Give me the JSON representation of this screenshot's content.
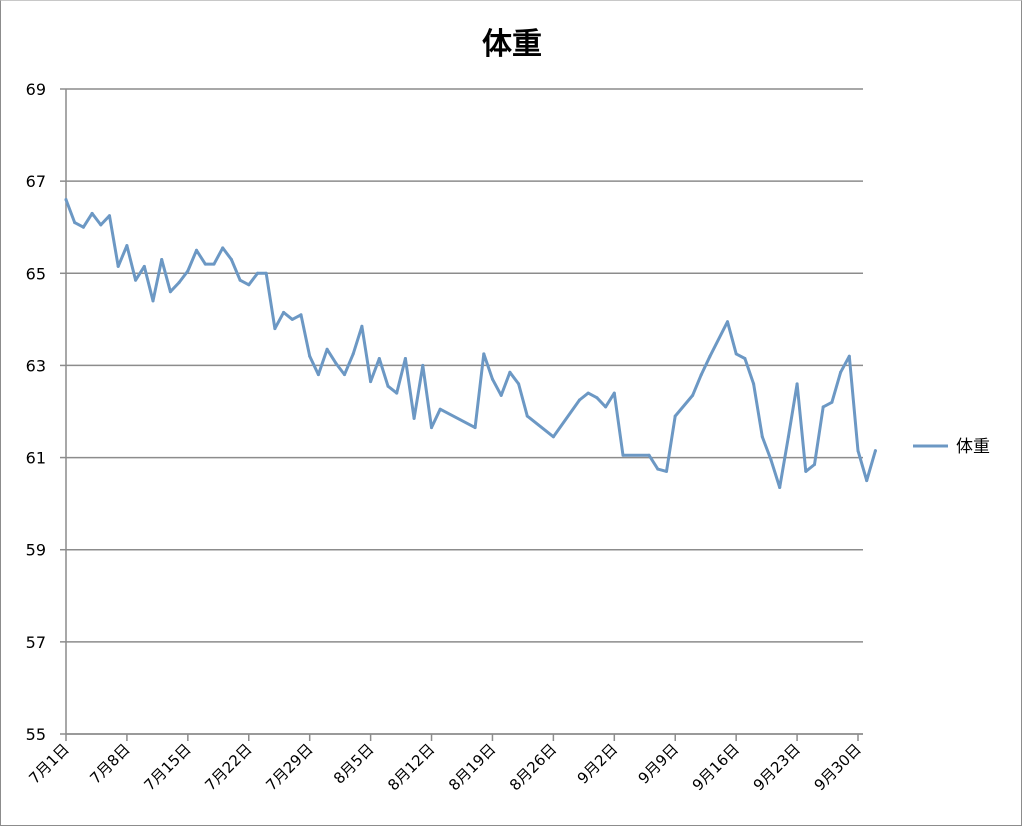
{
  "chart_data": {
    "type": "line",
    "title": "体重",
    "xlabel": "",
    "ylabel": "",
    "ylim": [
      55,
      69
    ],
    "ytick_step": 2,
    "grid": true,
    "legend": "right",
    "x_tick_labels": [
      "7月1日",
      "7月8日",
      "7月15日",
      "7月22日",
      "7月29日",
      "8月5日",
      "8月12日",
      "8月19日",
      "8月26日",
      "9月2日",
      "9月9日",
      "9月16日",
      "9月23日",
      "9月30日"
    ],
    "x_start": "7月1日",
    "x_end": "9月30日",
    "colors": {
      "series": "#6c98c4",
      "grid": "#8c8c8c",
      "axis": "#8c8c8c"
    },
    "series": [
      {
        "name": "体重",
        "points": [
          {
            "x": "7月1日",
            "y": 66.6
          },
          {
            "x": "7月2日",
            "y": 66.1
          },
          {
            "x": "7月3日",
            "y": 66.0
          },
          {
            "x": "7月4日",
            "y": 66.3
          },
          {
            "x": "7月5日",
            "y": 66.05
          },
          {
            "x": "7月6日",
            "y": 66.25
          },
          {
            "x": "7月7日",
            "y": 65.15
          },
          {
            "x": "7月8日",
            "y": 65.6
          },
          {
            "x": "7月9日",
            "y": 64.85
          },
          {
            "x": "7月10日",
            "y": 65.15
          },
          {
            "x": "7月11日",
            "y": 64.4
          },
          {
            "x": "7月12日",
            "y": 65.3
          },
          {
            "x": "7月13日",
            "y": 64.6
          },
          {
            "x": "7月14日",
            "y": 64.8
          },
          {
            "x": "7月15日",
            "y": 65.05
          },
          {
            "x": "7月16日",
            "y": 65.5
          },
          {
            "x": "7月17日",
            "y": 65.2
          },
          {
            "x": "7月18日",
            "y": 65.2
          },
          {
            "x": "7月19日",
            "y": 65.55
          },
          {
            "x": "7月20日",
            "y": 65.3
          },
          {
            "x": "7月21日",
            "y": 64.85
          },
          {
            "x": "7月22日",
            "y": 64.75
          },
          {
            "x": "7月23日",
            "y": 65.0
          },
          {
            "x": "7月24日",
            "y": 65.0
          },
          {
            "x": "7月25日",
            "y": 63.8
          },
          {
            "x": "7月26日",
            "y": 64.15
          },
          {
            "x": "7月27日",
            "y": 64.0
          },
          {
            "x": "7月28日",
            "y": 64.1
          },
          {
            "x": "7月29日",
            "y": 63.2
          },
          {
            "x": "7月30日",
            "y": 62.8
          },
          {
            "x": "7月31日",
            "y": 63.35
          },
          {
            "x": "8月1日",
            "y": 63.05
          },
          {
            "x": "8月2日",
            "y": 62.8
          },
          {
            "x": "8月3日",
            "y": 63.25
          },
          {
            "x": "8月4日",
            "y": 63.85
          },
          {
            "x": "8月5日",
            "y": 62.65
          },
          {
            "x": "8月6日",
            "y": 63.15
          },
          {
            "x": "8月7日",
            "y": 62.55
          },
          {
            "x": "8月8日",
            "y": 62.4
          },
          {
            "x": "8月9日",
            "y": 63.15
          },
          {
            "x": "8月10日",
            "y": 61.85
          },
          {
            "x": "8月11日",
            "y": 63.0
          },
          {
            "x": "8月12日",
            "y": 61.65
          },
          {
            "x": "8月13日",
            "y": 62.05
          },
          {
            "x": "8月17日",
            "y": 61.65
          },
          {
            "x": "8月18日",
            "y": 63.25
          },
          {
            "x": "8月19日",
            "y": 62.7
          },
          {
            "x": "8月20日",
            "y": 62.35
          },
          {
            "x": "8月21日",
            "y": 62.85
          },
          {
            "x": "8月22日",
            "y": 62.6
          },
          {
            "x": "8月23日",
            "y": 61.9
          },
          {
            "x": "8月26日",
            "y": 61.45
          },
          {
            "x": "8月29日",
            "y": 62.25
          },
          {
            "x": "8月30日",
            "y": 62.4
          },
          {
            "x": "8月31日",
            "y": 62.3
          },
          {
            "x": "9月1日",
            "y": 62.1
          },
          {
            "x": "9月2日",
            "y": 62.4
          },
          {
            "x": "9月3日",
            "y": 61.05
          },
          {
            "x": "9月6日",
            "y": 61.05
          },
          {
            "x": "9月7日",
            "y": 60.75
          },
          {
            "x": "9月8日",
            "y": 60.7
          },
          {
            "x": "9月9日",
            "y": 61.9
          },
          {
            "x": "9月11日",
            "y": 62.35
          },
          {
            "x": "9月12日",
            "y": 62.8
          },
          {
            "x": "9月13日",
            "y": 63.2
          },
          {
            "x": "9月15日",
            "y": 63.95
          },
          {
            "x": "9月16日",
            "y": 63.25
          },
          {
            "x": "9月17日",
            "y": 63.15
          },
          {
            "x": "9月18日",
            "y": 62.6
          },
          {
            "x": "9月19日",
            "y": 61.45
          },
          {
            "x": "9月20日",
            "y": 60.95
          },
          {
            "x": "9月21日",
            "y": 60.35
          },
          {
            "x": "9月22日",
            "y": 61.45
          },
          {
            "x": "9月23日",
            "y": 62.6
          },
          {
            "x": "9月24日",
            "y": 60.7
          },
          {
            "x": "9月25日",
            "y": 60.85
          },
          {
            "x": "9月26日",
            "y": 62.1
          },
          {
            "x": "9月27日",
            "y": 62.2
          },
          {
            "x": "9月28日",
            "y": 62.85
          },
          {
            "x": "9月29日",
            "y": 63.2
          },
          {
            "x": "9月30日",
            "y": 61.15
          },
          {
            "x": "10月1日",
            "y": 60.5
          },
          {
            "x": "10月2日",
            "y": 61.15
          }
        ]
      }
    ]
  }
}
